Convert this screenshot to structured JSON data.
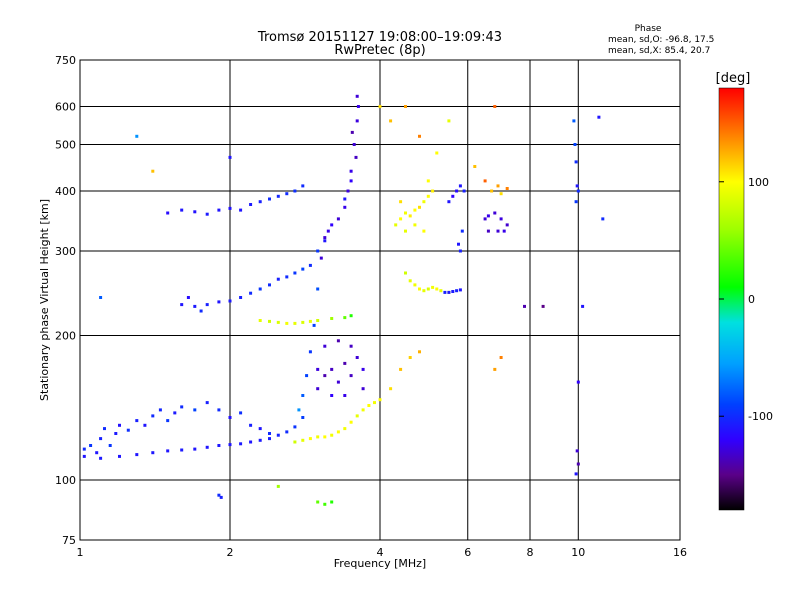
{
  "chart_data": {
    "type": "scatter",
    "title": "Tromsø 20151127 19:08:00–19:09:43",
    "subtitle": "RwPretec (8p)",
    "xlabel": "Frequency [MHz]",
    "ylabel": "Stationary phase Virtual Height [km]",
    "x_scale": "log",
    "y_scale": "log",
    "xlim": [
      1,
      16
    ],
    "ylim": [
      75,
      750
    ],
    "x_ticks": [
      1,
      2,
      4,
      6,
      8,
      10,
      16
    ],
    "x_tick_labels": [
      "1",
      "2",
      "4",
      "6",
      "8",
      "10",
      "16"
    ],
    "y_ticks": [
      75,
      100,
      200,
      300,
      400,
      500,
      600,
      750
    ],
    "y_tick_labels": [
      "75",
      "100",
      "200",
      "300",
      "400",
      "500",
      "600",
      "750"
    ],
    "grid": true,
    "phase_box": {
      "heading": "Phase",
      "line_o": "mean, sd,O: -96.8, 17.5",
      "line_x": "mean, sd,X:  85.4, 20.7"
    },
    "colorbar": {
      "label": "[deg]",
      "range": [
        -180,
        180
      ],
      "ticks": [
        100,
        0,
        -100
      ],
      "tick_labels": [
        "100",
        "0",
        "-100"
      ],
      "stops": [
        {
          "v": -180,
          "color": "#000000"
        },
        {
          "v": -150,
          "color": "#5a0088"
        },
        {
          "v": -120,
          "color": "#3000ff"
        },
        {
          "v": -90,
          "color": "#0040ff"
        },
        {
          "v": -55,
          "color": "#00a0ff"
        },
        {
          "v": -20,
          "color": "#00e0e0"
        },
        {
          "v": 10,
          "color": "#00ff00"
        },
        {
          "v": 60,
          "color": "#a0ff00"
        },
        {
          "v": 100,
          "color": "#ffff00"
        },
        {
          "v": 130,
          "color": "#ffa000"
        },
        {
          "v": 160,
          "color": "#ff4000"
        },
        {
          "v": 180,
          "color": "#ff0000"
        }
      ]
    },
    "series": [
      {
        "points": [
          [
            1.02,
            116,
            -100
          ],
          [
            1.05,
            118,
            -95
          ],
          [
            1.08,
            114,
            -110
          ],
          [
            1.1,
            122,
            -105
          ],
          [
            1.12,
            128,
            -100
          ],
          [
            1.15,
            118,
            -95
          ],
          [
            1.18,
            125,
            -108
          ],
          [
            1.2,
            130,
            -112
          ],
          [
            1.25,
            127,
            -98
          ],
          [
            1.3,
            133,
            -105
          ],
          [
            1.35,
            130,
            -110
          ],
          [
            1.4,
            136,
            -100
          ],
          [
            1.45,
            140,
            -102
          ],
          [
            1.5,
            133,
            -95
          ],
          [
            1.55,
            138,
            -108
          ],
          [
            1.6,
            142,
            -100
          ],
          [
            1.7,
            140,
            -90
          ],
          [
            1.8,
            145,
            -105
          ],
          [
            1.9,
            140,
            -100
          ],
          [
            2.0,
            135,
            -112
          ],
          [
            2.1,
            138,
            -98
          ],
          [
            2.2,
            130,
            -105
          ],
          [
            2.3,
            128,
            -110
          ],
          [
            2.4,
            125,
            -100
          ]
        ]
      },
      {
        "points": [
          [
            1.02,
            112,
            -110
          ],
          [
            1.1,
            111,
            -108
          ],
          [
            1.2,
            112,
            -110
          ],
          [
            1.3,
            113,
            -110
          ],
          [
            1.4,
            114,
            -109
          ],
          [
            1.5,
            115,
            -110
          ],
          [
            1.6,
            115.5,
            -108
          ],
          [
            1.7,
            116,
            -110
          ],
          [
            1.8,
            117,
            -110
          ],
          [
            1.9,
            118,
            -109
          ],
          [
            2.0,
            118.5,
            -110
          ],
          [
            2.1,
            119,
            -108
          ],
          [
            2.2,
            120,
            -110
          ],
          [
            2.3,
            121,
            -108
          ],
          [
            2.4,
            122,
            -106
          ],
          [
            2.5,
            124,
            -104
          ],
          [
            2.6,
            126,
            -100
          ],
          [
            2.7,
            129,
            -96
          ],
          [
            2.8,
            135,
            -92
          ]
        ]
      },
      {
        "points": [
          [
            2.75,
            140,
            -60
          ],
          [
            2.8,
            150,
            -80
          ],
          [
            2.85,
            165,
            -90
          ],
          [
            2.9,
            185,
            -95
          ],
          [
            2.95,
            210,
            -90
          ],
          [
            3.0,
            250,
            -85
          ],
          [
            3.05,
            290,
            -130
          ],
          [
            3.1,
            320,
            -130
          ],
          [
            3.15,
            330,
            -125
          ],
          [
            3.2,
            340,
            -120
          ],
          [
            3.3,
            350,
            -130
          ],
          [
            3.4,
            370,
            -125
          ],
          [
            3.45,
            400,
            -128
          ],
          [
            3.5,
            440,
            -125
          ],
          [
            3.55,
            500,
            -130
          ],
          [
            3.6,
            560,
            -128
          ],
          [
            3.62,
            600,
            -125
          ],
          [
            3.5,
            420,
            -120
          ],
          [
            3.4,
            385,
            -110
          ],
          [
            3.58,
            470,
            -135
          ],
          [
            3.52,
            530,
            -140
          ],
          [
            3.6,
            630,
            -130
          ]
        ]
      },
      {
        "points": [
          [
            2.7,
            120,
            80
          ],
          [
            2.8,
            121,
            90
          ],
          [
            2.9,
            122,
            100
          ],
          [
            3.0,
            123,
            95
          ],
          [
            3.1,
            123,
            100
          ],
          [
            3.2,
            124,
            95
          ],
          [
            3.3,
            126,
            100
          ],
          [
            3.4,
            128,
            95
          ],
          [
            3.5,
            132,
            100
          ],
          [
            3.6,
            136,
            90
          ],
          [
            3.7,
            140,
            95
          ],
          [
            3.8,
            143,
            100
          ],
          [
            3.9,
            145,
            95
          ],
          [
            4.0,
            147,
            100
          ],
          [
            4.2,
            155,
            110
          ],
          [
            4.4,
            170,
            120
          ],
          [
            4.6,
            180,
            115
          ],
          [
            4.8,
            185,
            125
          ]
        ]
      },
      {
        "points": [
          [
            3.0,
            155,
            -130
          ],
          [
            3.1,
            165,
            -140
          ],
          [
            3.2,
            170,
            -135
          ],
          [
            3.3,
            160,
            -130
          ],
          [
            3.4,
            175,
            -140
          ],
          [
            3.5,
            165,
            -135
          ],
          [
            3.6,
            180,
            -130
          ],
          [
            3.7,
            170,
            -125
          ],
          [
            3.2,
            150,
            -120
          ],
          [
            3.4,
            150,
            -125
          ],
          [
            3.1,
            190,
            -130
          ],
          [
            3.3,
            195,
            -140
          ],
          [
            3.5,
            190,
            -135
          ],
          [
            3.7,
            155,
            -130
          ],
          [
            3.0,
            170,
            -128
          ]
        ]
      },
      {
        "points": [
          [
            1.6,
            232,
            -110
          ],
          [
            1.7,
            230,
            -108
          ],
          [
            1.8,
            232,
            -105
          ],
          [
            1.9,
            235,
            -110
          ],
          [
            2.0,
            236,
            -108
          ],
          [
            2.1,
            240,
            -105
          ],
          [
            2.2,
            245,
            -100
          ],
          [
            2.3,
            250,
            -95
          ],
          [
            2.4,
            255,
            -100
          ],
          [
            2.5,
            262,
            -105
          ],
          [
            2.6,
            265,
            -100
          ],
          [
            2.7,
            270,
            -95
          ],
          [
            2.8,
            275,
            -90
          ],
          [
            2.9,
            280,
            -100
          ],
          [
            3.0,
            300,
            -95
          ],
          [
            3.1,
            315,
            -110
          ],
          [
            1.65,
            240,
            -115
          ],
          [
            1.75,
            225,
            -100
          ]
        ]
      },
      {
        "points": [
          [
            2.3,
            215,
            90
          ],
          [
            2.4,
            214,
            80
          ],
          [
            2.5,
            213,
            85
          ],
          [
            2.6,
            212,
            95
          ],
          [
            2.7,
            212,
            90
          ],
          [
            2.8,
            213,
            85
          ],
          [
            2.9,
            214,
            90
          ],
          [
            3.0,
            215,
            80
          ],
          [
            3.2,
            217,
            60
          ],
          [
            3.4,
            218,
            40
          ],
          [
            3.5,
            220,
            20
          ]
        ]
      },
      {
        "points": [
          [
            1.5,
            360,
            -115
          ],
          [
            1.6,
            365,
            -110
          ],
          [
            1.7,
            362,
            -112
          ],
          [
            1.8,
            358,
            -108
          ],
          [
            1.9,
            365,
            -110
          ],
          [
            2.0,
            368,
            -112
          ],
          [
            2.1,
            365,
            -110
          ],
          [
            2.2,
            375,
            -108
          ],
          [
            2.3,
            380,
            -105
          ],
          [
            2.4,
            385,
            -100
          ],
          [
            2.5,
            390,
            -102
          ],
          [
            2.6,
            395,
            -100
          ],
          [
            2.7,
            400,
            -98
          ],
          [
            2.8,
            410,
            -100
          ]
        ]
      },
      {
        "points": [
          [
            4.3,
            340,
            90
          ],
          [
            4.4,
            350,
            100
          ],
          [
            4.5,
            360,
            95
          ],
          [
            4.6,
            355,
            105
          ],
          [
            4.7,
            365,
            100
          ],
          [
            4.8,
            370,
            110
          ],
          [
            4.9,
            380,
            95
          ],
          [
            5.0,
            390,
            100
          ],
          [
            5.1,
            400,
            105
          ],
          [
            4.5,
            330,
            90
          ],
          [
            4.7,
            340,
            95
          ],
          [
            4.9,
            330,
            100
          ],
          [
            4.4,
            380,
            110
          ],
          [
            5.0,
            420,
            100
          ]
        ]
      },
      {
        "points": [
          [
            4.5,
            270,
            80
          ],
          [
            4.6,
            260,
            90
          ],
          [
            4.7,
            255,
            95
          ],
          [
            4.8,
            250,
            100
          ],
          [
            4.9,
            248,
            90
          ],
          [
            5.0,
            250,
            85
          ],
          [
            5.1,
            252,
            95
          ],
          [
            5.2,
            250,
            100
          ],
          [
            5.3,
            248,
            90
          ],
          [
            5.5,
            246,
            80
          ]
        ]
      },
      {
        "points": [
          [
            5.4,
            246,
            -105
          ],
          [
            5.5,
            246,
            -110
          ],
          [
            5.6,
            247,
            -108
          ],
          [
            5.7,
            248,
            -105
          ],
          [
            5.8,
            249,
            -110
          ],
          [
            5.5,
            380,
            -110
          ],
          [
            5.6,
            390,
            -120
          ],
          [
            5.7,
            400,
            -115
          ],
          [
            5.8,
            410,
            -110
          ],
          [
            5.9,
            400,
            -105
          ],
          [
            5.75,
            310,
            -110
          ],
          [
            5.8,
            300,
            -105
          ],
          [
            5.85,
            330,
            -100
          ]
        ]
      },
      {
        "points": [
          [
            6.5,
            350,
            -130
          ],
          [
            6.6,
            355,
            -125
          ],
          [
            6.8,
            360,
            -130
          ],
          [
            7.0,
            350,
            -128
          ],
          [
            7.2,
            340,
            -132
          ],
          [
            6.6,
            330,
            -135
          ],
          [
            6.9,
            330,
            -130
          ],
          [
            7.1,
            330,
            -125
          ]
        ]
      },
      {
        "points": [
          [
            6.7,
            400,
            120
          ],
          [
            6.9,
            410,
            130
          ],
          [
            7.0,
            395,
            110
          ],
          [
            7.2,
            405,
            140
          ],
          [
            6.5,
            420,
            150
          ]
        ]
      },
      {
        "points": [
          [
            9.8,
            560,
            -80
          ],
          [
            9.85,
            500,
            -90
          ],
          [
            9.9,
            460,
            -100
          ],
          [
            9.95,
            410,
            -110
          ],
          [
            10.0,
            400,
            -100
          ],
          [
            9.9,
            380,
            -95
          ],
          [
            10.0,
            160,
            -120
          ],
          [
            9.95,
            115,
            -130
          ],
          [
            10.0,
            108,
            -140
          ],
          [
            9.9,
            103,
            -110
          ]
        ]
      },
      {
        "points": [
          [
            3.0,
            90,
            40
          ],
          [
            3.1,
            89,
            30
          ],
          [
            3.2,
            90,
            20
          ],
          [
            2.5,
            97,
            60
          ],
          [
            1.9,
            93,
            -100
          ],
          [
            1.92,
            92,
            -105
          ],
          [
            7.8,
            230,
            -140
          ],
          [
            8.5,
            230,
            -150
          ],
          [
            10.2,
            230,
            -110
          ]
        ]
      },
      {
        "points": [
          [
            4.5,
            600,
            130
          ],
          [
            4.2,
            560,
            120
          ],
          [
            4.8,
            520,
            140
          ],
          [
            4.0,
            600,
            110
          ],
          [
            5.2,
            480,
            100
          ],
          [
            5.5,
            560,
            90
          ],
          [
            6.8,
            600,
            150
          ],
          [
            6.2,
            450,
            120
          ],
          [
            6.8,
            170,
            130
          ],
          [
            7.0,
            180,
            140
          ],
          [
            11.0,
            570,
            -110
          ],
          [
            11.2,
            350,
            -100
          ],
          [
            1.4,
            440,
            120
          ],
          [
            1.3,
            520,
            -60
          ],
          [
            1.1,
            240,
            -80
          ],
          [
            2.0,
            470,
            -110
          ]
        ]
      }
    ]
  }
}
